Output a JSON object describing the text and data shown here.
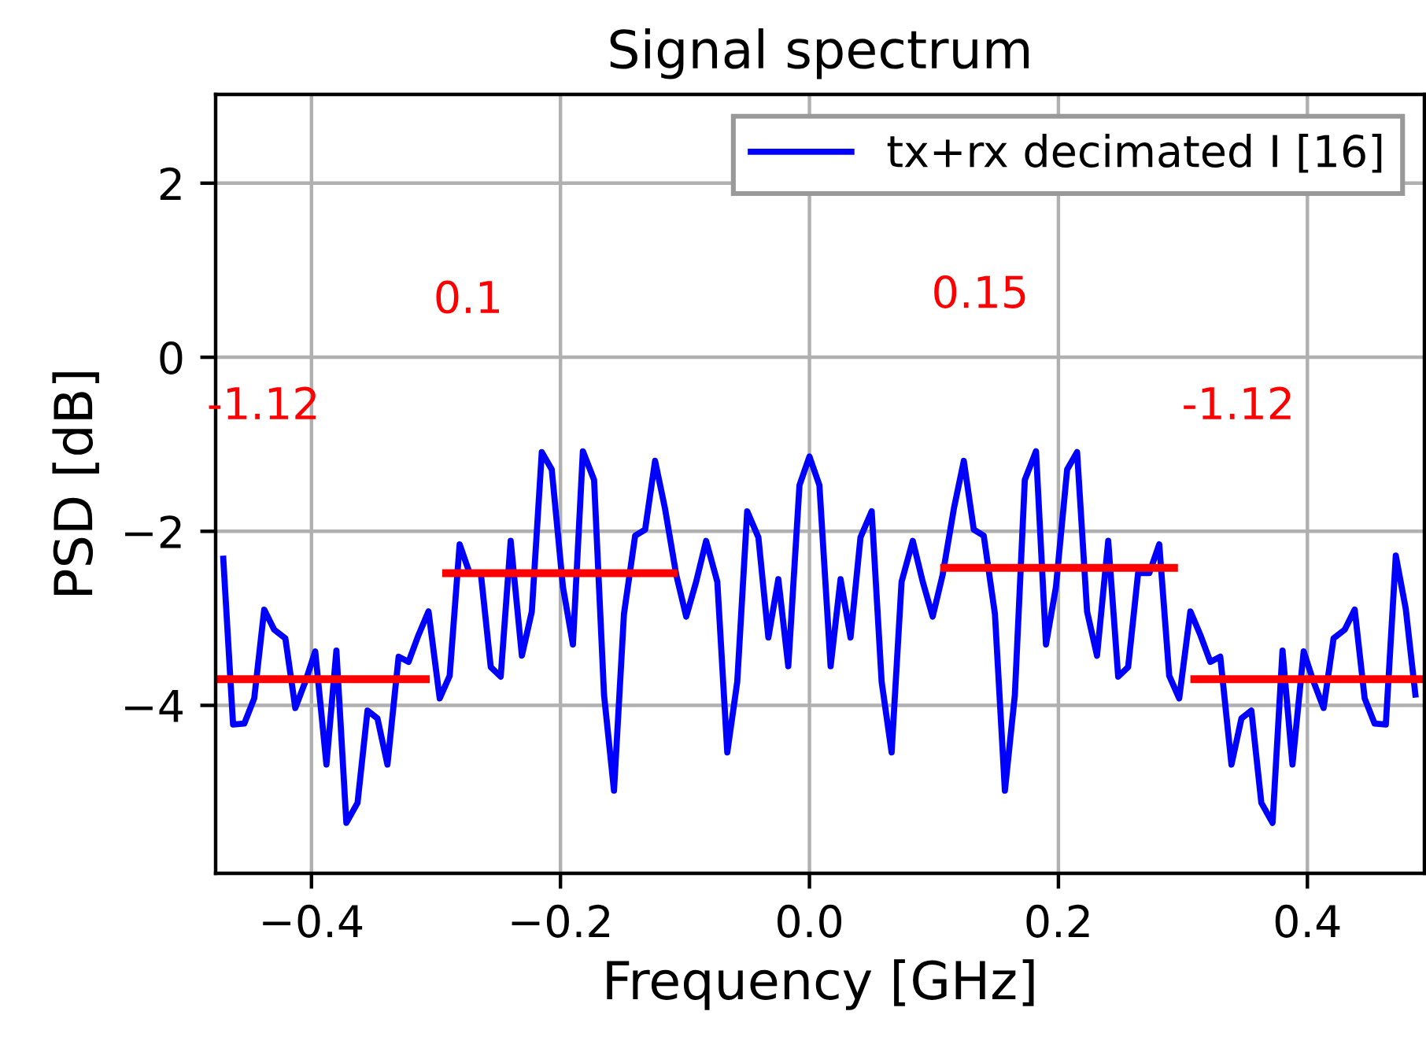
{
  "chart_data": {
    "type": "line",
    "title": "Signal spectrum",
    "xlabel": "Frequency [GHz]",
    "ylabel": "PSD [dB]",
    "series": [
      {
        "name": "tx+rx decimated I [16]",
        "color": "#0000ff",
        "x": [
          -0.471,
          -0.463,
          -0.454,
          -0.446,
          -0.438,
          -0.43,
          -0.421,
          -0.413,
          -0.405,
          -0.397,
          -0.388,
          -0.38,
          -0.372,
          -0.363,
          -0.355,
          -0.347,
          -0.339,
          -0.33,
          -0.322,
          -0.314,
          -0.306,
          -0.297,
          -0.289,
          -0.281,
          -0.273,
          -0.264,
          -0.256,
          -0.248,
          -0.24,
          -0.231,
          -0.223,
          -0.215,
          -0.207,
          -0.198,
          -0.19,
          -0.182,
          -0.173,
          -0.165,
          -0.157,
          -0.149,
          -0.14,
          -0.132,
          -0.124,
          -0.116,
          -0.107,
          -0.099,
          -0.091,
          -0.083,
          -0.074,
          -0.066,
          -0.058,
          -0.05,
          -0.041,
          -0.033,
          -0.025,
          -0.017,
          -0.008,
          0.0,
          0.008,
          0.017,
          0.025,
          0.033,
          0.041,
          0.05,
          0.058,
          0.066,
          0.074,
          0.083,
          0.091,
          0.099,
          0.107,
          0.116,
          0.124,
          0.132,
          0.14,
          0.149,
          0.157,
          0.165,
          0.173,
          0.182,
          0.19,
          0.198,
          0.207,
          0.215,
          0.223,
          0.231,
          0.24,
          0.248,
          0.256,
          0.264,
          0.273,
          0.281,
          0.289,
          0.297,
          0.306,
          0.314,
          0.322,
          0.33,
          0.339,
          0.347,
          0.355,
          0.363,
          0.372,
          0.38,
          0.388,
          0.397,
          0.405,
          0.413,
          0.421,
          0.43,
          0.438,
          0.446,
          0.454,
          0.463,
          0.471,
          0.479,
          0.487
        ],
        "values": [
          -2.28,
          -4.22,
          -4.21,
          -3.92,
          -2.9,
          -3.13,
          -3.23,
          -4.03,
          -3.73,
          -3.38,
          -4.68,
          -3.37,
          -5.35,
          -5.12,
          -4.06,
          -4.15,
          -4.68,
          -3.44,
          -3.5,
          -3.19,
          -2.92,
          -3.92,
          -3.66,
          -2.15,
          -2.48,
          -2.48,
          -3.56,
          -3.67,
          -2.11,
          -3.43,
          -2.92,
          -1.09,
          -1.29,
          -2.64,
          -3.3,
          -1.08,
          -1.41,
          -3.88,
          -4.98,
          -2.95,
          -2.05,
          -1.98,
          -1.19,
          -1.74,
          -2.5,
          -2.98,
          -2.58,
          -2.11,
          -2.58,
          -4.54,
          -3.73,
          -1.77,
          -2.07,
          -3.22,
          -2.55,
          -3.55,
          -1.47,
          -1.14,
          -1.47,
          -3.55,
          -2.55,
          -3.22,
          -2.07,
          -1.77,
          -3.73,
          -4.54,
          -2.58,
          -2.11,
          -2.58,
          -2.98,
          -2.5,
          -1.74,
          -1.19,
          -1.98,
          -2.05,
          -2.95,
          -4.98,
          -3.88,
          -1.41,
          -1.08,
          -3.3,
          -2.64,
          -1.29,
          -1.09,
          -2.92,
          -3.43,
          -2.11,
          -3.67,
          -3.56,
          -2.48,
          -2.48,
          -2.15,
          -3.66,
          -3.92,
          -2.92,
          -3.19,
          -3.5,
          -3.44,
          -4.68,
          -4.15,
          -4.06,
          -5.12,
          -5.35,
          -3.37,
          -4.68,
          -3.38,
          -3.73,
          -4.03,
          -3.23,
          -3.13,
          -2.9,
          -3.92,
          -4.21,
          -4.22,
          -2.28,
          -2.89,
          -3.91
        ]
      },
      {
        "color": "#ff0000",
        "x": [
          -0.477,
          -0.305
        ],
        "values": [
          -3.7,
          -3.7
        ]
      },
      {
        "color": "#ff0000",
        "x": [
          -0.295,
          -0.106
        ],
        "values": [
          -2.48,
          -2.48
        ]
      },
      {
        "color": "#ff0000",
        "x": [
          0.105,
          0.296
        ],
        "values": [
          -2.42,
          -2.42
        ]
      },
      {
        "color": "#ff0000",
        "x": [
          0.306,
          0.494
        ],
        "values": [
          -3.7,
          -3.7
        ]
      }
    ],
    "annotations": [
      "-1.12",
      "0.1",
      "0.15",
      "-1.12"
    ],
    "xlim": [
      -0.477,
      0.494
    ],
    "ylim": [
      -5.93,
      3.02
    ],
    "xticks": [
      {
        "value": -0.4,
        "label": "−0.4"
      },
      {
        "value": -0.2,
        "label": "−0.2"
      },
      {
        "value": 0,
        "label": "0.0"
      },
      0.2,
      0.4
    ],
    "yticks": [
      {
        "value": -4,
        "label": "−4"
      },
      {
        "value": -2,
        "label": "−2"
      },
      0,
      2
    ],
    "grid": true,
    "legend": "top right",
    "line_style": "solid"
  }
}
